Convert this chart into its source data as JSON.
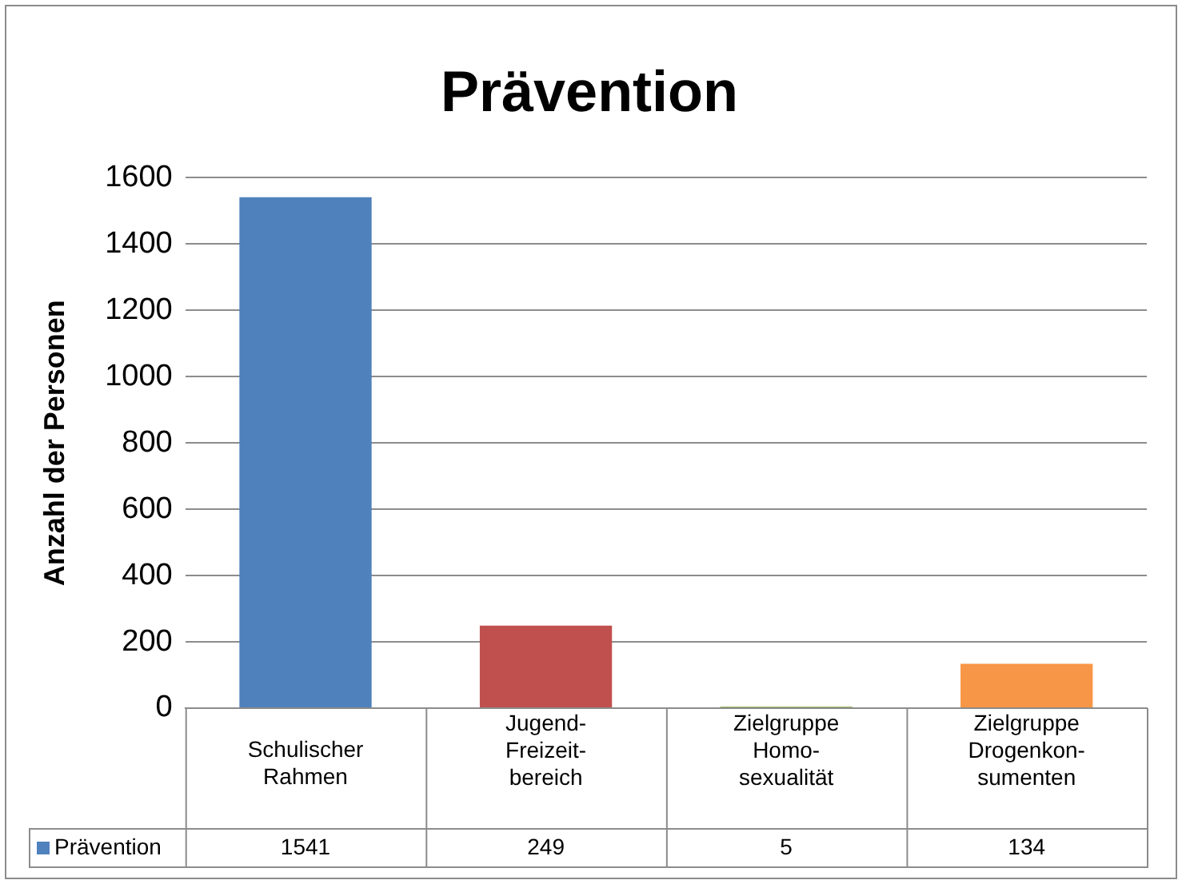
{
  "chart_data": {
    "type": "bar",
    "title": "Prävention",
    "ylabel": "Anzahl der Personen",
    "categories": [
      "Schulischer\nRahmen",
      "Jugend-\nFreizeit-\nbereich",
      "Zielgruppe\nHomo-\nsexualität",
      "Zielgruppe\nDrogenkon-\nsumenten"
    ],
    "series": [
      {
        "name": "Prävention",
        "color": "#4f81bd",
        "colors": [
          "#4f81bd",
          "#c0504d",
          "#9bbb59",
          "#f79646"
        ],
        "values": [
          1541,
          249,
          5,
          134
        ]
      }
    ],
    "ylim": [
      0,
      1600
    ],
    "yticks": [
      0,
      200,
      400,
      600,
      800,
      1000,
      1200,
      1400,
      1600
    ],
    "grid": "y",
    "legend": "bottom",
    "data_labels": true
  }
}
